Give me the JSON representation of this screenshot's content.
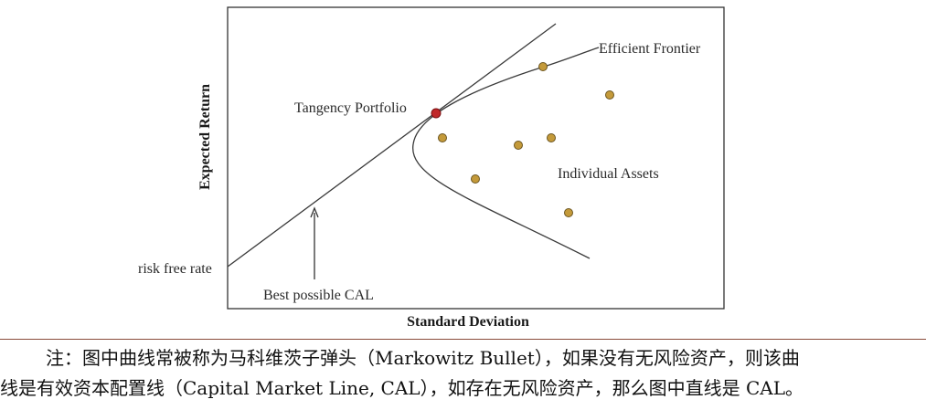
{
  "diagram": {
    "xlabel": "Standard Deviation",
    "ylabel": "Expected Return",
    "labels": {
      "efficient_frontier": "Efficient Frontier",
      "tangency_portfolio": "Tangency Portfolio",
      "individual_assets": "Individual Assets",
      "risk_free_rate": "risk free rate",
      "best_possible_cal": "Best possible CAL"
    },
    "colors": {
      "frame": "#333333",
      "curve": "#3a3a3a",
      "asset_fill": "#c49a3a",
      "asset_stroke": "#6b5520",
      "tangency_fill": "#c0282a",
      "tangency_stroke": "#7a1012"
    }
  },
  "note": {
    "line1": "注：图中曲线常被称为马科维茨子弹头（Markowitz Bullet），如果没有无风险资产，则该曲",
    "line2": "线是有效资本配置线（Capital Market Line, CAL），如存在无风险资产，那么图中直线是 CAL。"
  }
}
